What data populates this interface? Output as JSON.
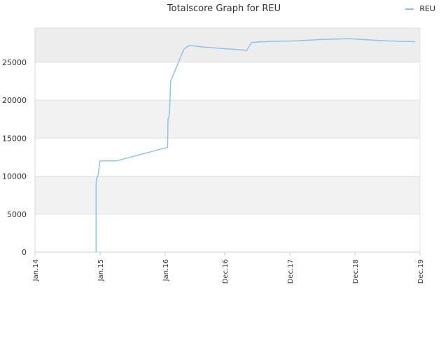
{
  "chart_data": {
    "type": "line",
    "title": "Totalscore Graph for REU",
    "xlabel": "",
    "ylabel": "",
    "legend_position": "top-right",
    "grid": true,
    "ylim": [
      0,
      29500
    ],
    "y_ticks": [
      0,
      5000,
      10000,
      15000,
      20000,
      25000
    ],
    "x_range": [
      "2014-01-01",
      "2019-12-01"
    ],
    "x_tick_labels": [
      {
        "date": "2014-01-01",
        "label": "Jan.14"
      },
      {
        "date": "2015-01-01",
        "label": "Jan.15"
      },
      {
        "date": "2016-01-01",
        "label": "Jan.16"
      },
      {
        "date": "2016-12-01",
        "label": "Dec.16"
      },
      {
        "date": "2017-12-01",
        "label": "Dec.17"
      },
      {
        "date": "2018-12-01",
        "label": "Dec.18"
      },
      {
        "date": "2019-12-01",
        "label": "Dec.19"
      }
    ],
    "series": [
      {
        "name": "REU",
        "color": "#8cc4ea",
        "points": [
          {
            "x": "2014-12-10",
            "y": 0
          },
          {
            "x": "2014-12-10",
            "y": 9000
          },
          {
            "x": "2014-12-12",
            "y": 9700
          },
          {
            "x": "2014-12-20",
            "y": 10000
          },
          {
            "x": "2015-01-01",
            "y": 12000
          },
          {
            "x": "2015-04-01",
            "y": 12000
          },
          {
            "x": "2016-01-15",
            "y": 13800
          },
          {
            "x": "2016-01-17",
            "y": 17500
          },
          {
            "x": "2016-01-25",
            "y": 18000
          },
          {
            "x": "2016-02-01",
            "y": 22500
          },
          {
            "x": "2016-04-15",
            "y": 26700
          },
          {
            "x": "2016-05-01",
            "y": 27000
          },
          {
            "x": "2016-05-15",
            "y": 27200
          },
          {
            "x": "2016-08-01",
            "y": 27000
          },
          {
            "x": "2017-03-15",
            "y": 26600
          },
          {
            "x": "2017-04-01",
            "y": 26500
          },
          {
            "x": "2017-05-01",
            "y": 27600
          },
          {
            "x": "2017-07-01",
            "y": 27700
          },
          {
            "x": "2018-01-01",
            "y": 27800
          },
          {
            "x": "2018-06-01",
            "y": 28000
          },
          {
            "x": "2018-11-01",
            "y": 28100
          },
          {
            "x": "2019-01-01",
            "y": 28000
          },
          {
            "x": "2019-06-01",
            "y": 27800
          },
          {
            "x": "2019-11-01",
            "y": 27700
          }
        ]
      }
    ]
  }
}
